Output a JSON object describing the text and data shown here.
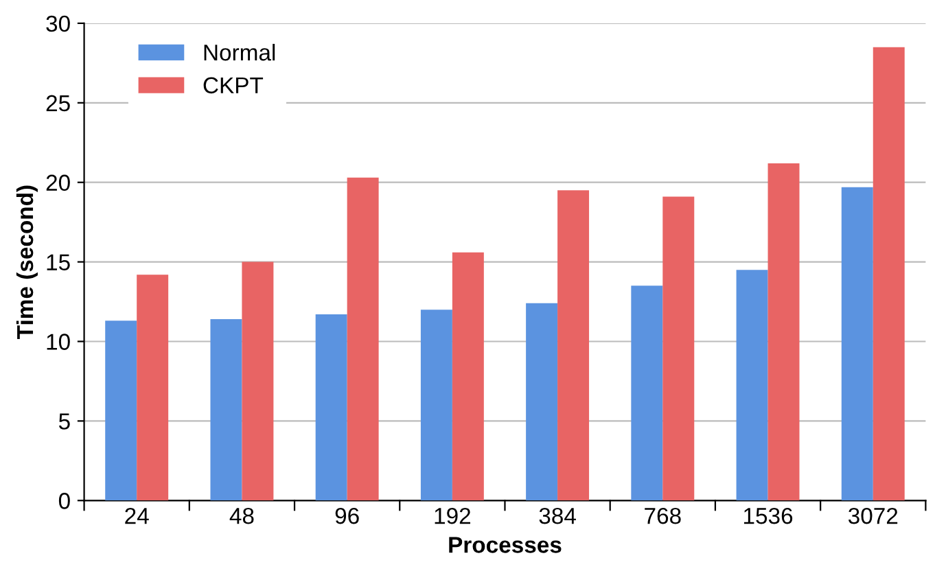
{
  "chart_data": {
    "type": "bar",
    "xlabel": "Processes",
    "ylabel": "Time (second)",
    "categories": [
      "24",
      "48",
      "96",
      "192",
      "384",
      "768",
      "1536",
      "3072"
    ],
    "series": [
      {
        "name": "Normal",
        "color": "#5b93e0",
        "values": [
          11.3,
          11.4,
          11.7,
          12.0,
          12.4,
          13.5,
          14.5,
          19.7
        ]
      },
      {
        "name": "CKPT",
        "color": "#e86464",
        "values": [
          14.2,
          15.0,
          20.3,
          15.6,
          19.5,
          19.1,
          21.2,
          28.5
        ]
      }
    ],
    "ylim": [
      0,
      30
    ],
    "yticks": [
      0,
      5,
      10,
      15,
      20,
      25,
      30
    ],
    "grid": "y",
    "legend": "top left"
  }
}
